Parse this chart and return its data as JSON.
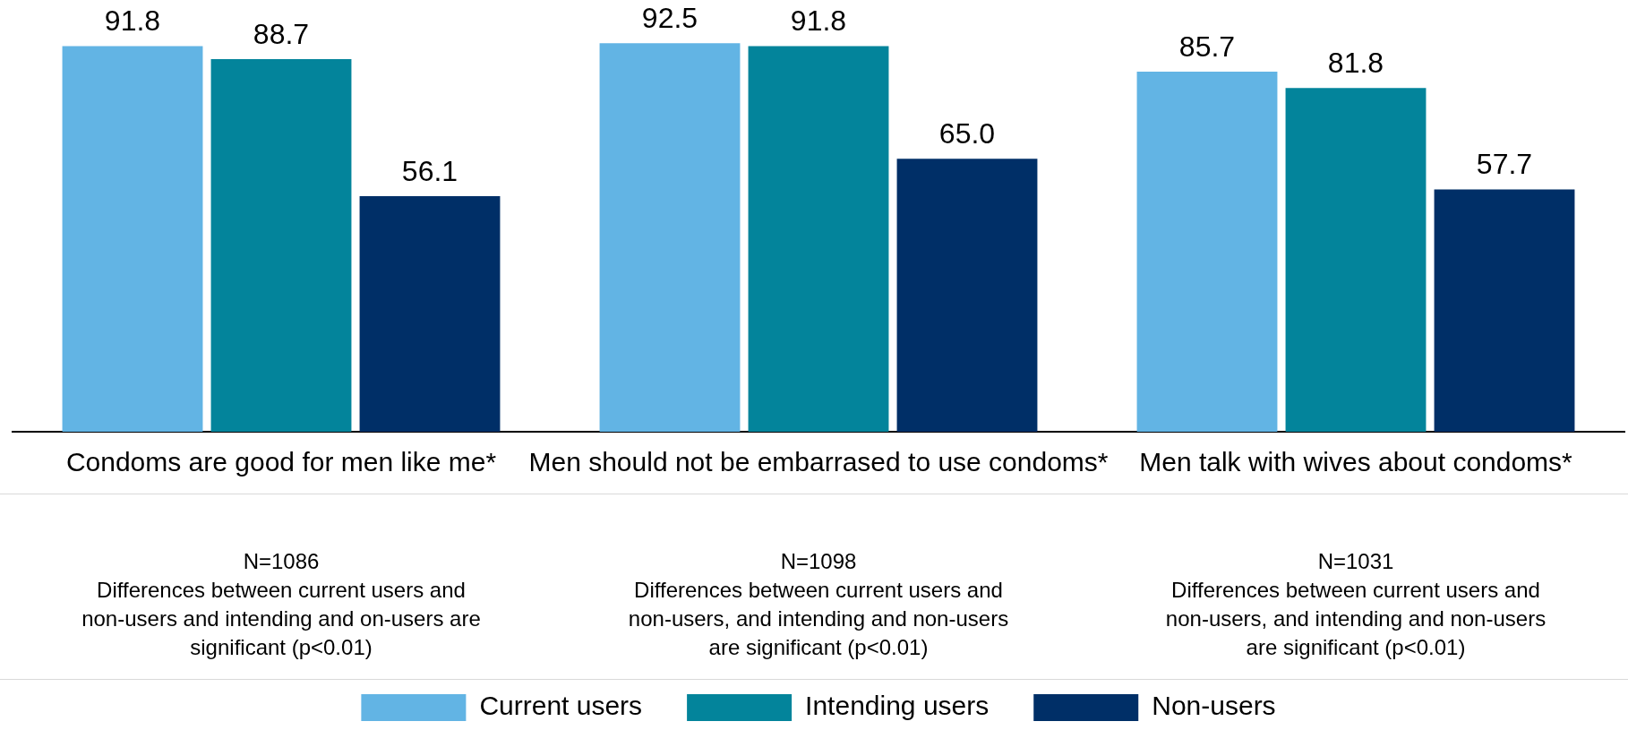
{
  "chart_data": {
    "type": "bar",
    "categories": [
      "Condoms are good for men like me*",
      "Men should not be embarrased to use condoms*",
      "Men talk with wives about condoms*"
    ],
    "series": [
      {
        "name": "Current users",
        "color": "#62b4e4",
        "values": [
          91.8,
          92.5,
          85.7
        ],
        "value_labels": [
          "91.8",
          "92.5",
          "85.7"
        ]
      },
      {
        "name": "Intending users",
        "color": "#03849b",
        "values": [
          88.7,
          91.8,
          81.8
        ],
        "value_labels": [
          "88.7",
          "91.8",
          "81.8"
        ]
      },
      {
        "name": "Non-users",
        "color": "#002f67",
        "values": [
          56.1,
          65.0,
          57.7
        ],
        "value_labels": [
          "56.1",
          "65.0",
          "57.7"
        ]
      }
    ],
    "tick_labels": "x",
    "legend": "bottom",
    "annotations": [
      "N=1086\nDifferences between current users and non-users and intending and on-users are significant (p<0.01)",
      "N=1098\nDifferences between current users and non-users, and intending and non-users are significant (p<0.01)",
      "N=1031\nDifferences between current users and non-users, and intending and non-users are significant (p<0.01)"
    ]
  }
}
